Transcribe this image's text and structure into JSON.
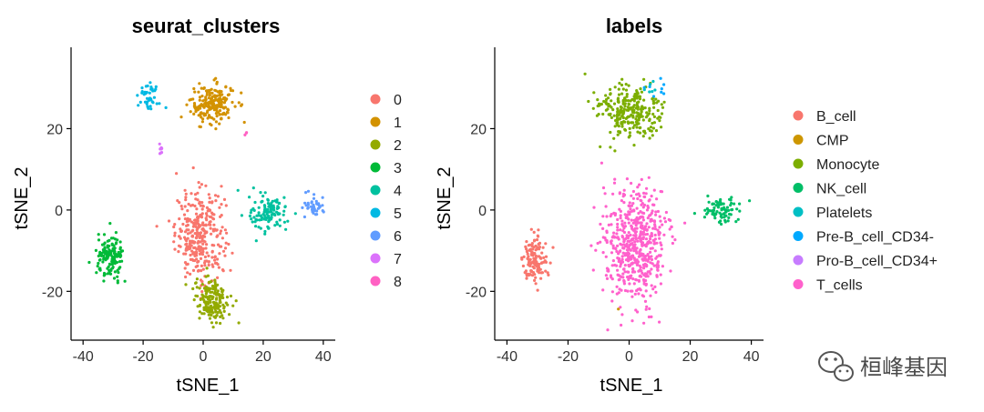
{
  "chart_data": [
    {
      "type": "scatter",
      "title": "seurat_clusters",
      "xlabel": "tSNE_1",
      "ylabel": "tSNE_2",
      "xlim": [
        -44,
        44
      ],
      "ylim": [
        -32,
        40
      ],
      "xticks": [
        -40,
        -20,
        0,
        20,
        40
      ],
      "yticks": [
        -20,
        0,
        20
      ],
      "legend": {
        "title": "",
        "position": "right",
        "entries": [
          {
            "label": "0",
            "color": "#F8766D"
          },
          {
            "label": "1",
            "color": "#D39200"
          },
          {
            "label": "2",
            "color": "#93AA00"
          },
          {
            "label": "3",
            "color": "#00BA38"
          },
          {
            "label": "4",
            "color": "#00C19F"
          },
          {
            "label": "5",
            "color": "#00B9E3"
          },
          {
            "label": "6",
            "color": "#619CFF"
          },
          {
            "label": "7",
            "color": "#DB72FB"
          },
          {
            "label": "8",
            "color": "#FF61C3"
          }
        ]
      },
      "clusters": [
        {
          "group": "0",
          "center": [
            -1,
            -6
          ],
          "spread": [
            7.5,
            10
          ],
          "n": 320
        },
        {
          "group": "1",
          "center": [
            3,
            26
          ],
          "spread": [
            6.5,
            4.5
          ],
          "n": 200
        },
        {
          "group": "2",
          "center": [
            3,
            -22
          ],
          "spread": [
            5.5,
            5
          ],
          "n": 180
        },
        {
          "group": "3",
          "center": [
            -31,
            -12
          ],
          "spread": [
            4,
            5
          ],
          "n": 140
        },
        {
          "group": "4",
          "center": [
            22,
            -1
          ],
          "spread": [
            6,
            4
          ],
          "n": 120
        },
        {
          "group": "5",
          "center": [
            -18,
            28
          ],
          "spread": [
            3,
            3
          ],
          "n": 40
        },
        {
          "group": "6",
          "center": [
            37,
            1
          ],
          "spread": [
            3,
            2.5
          ],
          "n": 40
        },
        {
          "group": "7",
          "center": [
            -14,
            15
          ],
          "spread": [
            1,
            1.5
          ],
          "n": 8
        },
        {
          "group": "8",
          "center": [
            14,
            19
          ],
          "spread": [
            0.8,
            0.8
          ],
          "n": 3
        }
      ]
    },
    {
      "type": "scatter",
      "title": "labels",
      "xlabel": "tSNE_1",
      "ylabel": "tSNE_2",
      "xlim": [
        -44,
        44
      ],
      "ylim": [
        -32,
        40
      ],
      "xticks": [
        -40,
        -20,
        0,
        20,
        40
      ],
      "yticks": [
        -20,
        0,
        20
      ],
      "legend": {
        "title": "",
        "position": "right",
        "entries": [
          {
            "label": "B_cell",
            "color": "#F8766D"
          },
          {
            "label": "CMP",
            "color": "#CD9600"
          },
          {
            "label": "Monocyte",
            "color": "#7CAE00"
          },
          {
            "label": "NK_cell",
            "color": "#00BE67"
          },
          {
            "label": "Platelets",
            "color": "#00BFC4"
          },
          {
            "label": "Pre-B_cell_CD34-",
            "color": "#00A9FF"
          },
          {
            "label": "Pro-B_cell_CD34+",
            "color": "#C77CFF"
          },
          {
            "label": "T_cells",
            "color": "#FF61CC"
          }
        ]
      },
      "clusters": [
        {
          "group": "T_cells",
          "center": [
            2,
            -9
          ],
          "spread": [
            9,
            13
          ],
          "n": 560
        },
        {
          "group": "Monocyte",
          "center": [
            0,
            24
          ],
          "spread": [
            10,
            6
          ],
          "n": 260
        },
        {
          "group": "B_cell",
          "center": [
            -31,
            -12
          ],
          "spread": [
            4,
            5
          ],
          "n": 140
        },
        {
          "group": "NK_cell",
          "center": [
            30,
            0
          ],
          "spread": [
            6,
            3
          ],
          "n": 80
        },
        {
          "group": "Platelets",
          "center": [
            8,
            30
          ],
          "spread": [
            4,
            3
          ],
          "n": 6
        },
        {
          "group": "Pre-B_cell_CD34-",
          "center": [
            8,
            30
          ],
          "spread": [
            6,
            5
          ],
          "n": 8
        },
        {
          "group": "CMP",
          "center": [
            -5,
            -24
          ],
          "spread": [
            2,
            1
          ],
          "n": 1
        },
        {
          "group": "Pro-B_cell_CD34+",
          "center": [
            0,
            0
          ],
          "spread": [
            1,
            1
          ],
          "n": 0
        }
      ]
    }
  ],
  "watermark": {
    "text": "桓峰基因",
    "icon": "wechat-icon"
  }
}
